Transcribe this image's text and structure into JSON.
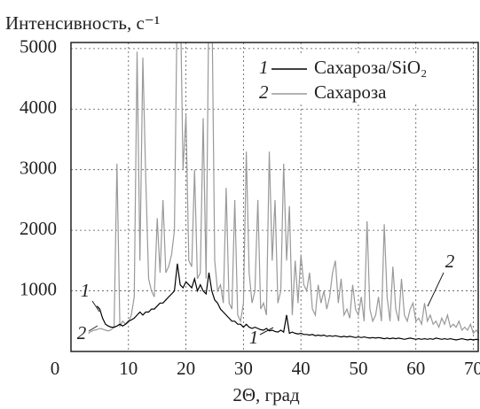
{
  "chart_data": {
    "type": "line",
    "ylabel": "Интенсивность, с⁻¹",
    "xlabel": "2Θ, град",
    "xlim": [
      0,
      71
    ],
    "ylim": [
      0,
      5100
    ],
    "xticks": [
      0,
      10,
      20,
      30,
      40,
      50,
      60,
      70
    ],
    "yticks": [
      1000,
      2000,
      3000,
      4000,
      5000
    ],
    "grid": true,
    "legend": "upper right",
    "annotations": [
      "1",
      "2",
      "1",
      "2"
    ],
    "x": [
      3,
      3.5,
      4,
      4.5,
      5,
      5.5,
      6,
      6.5,
      7,
      7.5,
      8,
      8.5,
      9,
      9.5,
      10,
      10.5,
      11,
      11.5,
      12,
      12.5,
      13,
      13.5,
      14,
      14.5,
      15,
      15.5,
      16,
      16.5,
      17,
      17.5,
      18,
      18.5,
      19,
      19.5,
      20,
      20.5,
      21,
      21.5,
      22,
      22.5,
      23,
      23.5,
      24,
      24.5,
      25,
      25.5,
      26,
      26.5,
      27,
      27.5,
      28,
      28.5,
      29,
      29.5,
      30,
      30.5,
      31,
      31.5,
      32,
      32.5,
      33,
      33.5,
      34,
      34.5,
      35,
      35.5,
      36,
      36.5,
      37,
      37.5,
      38,
      38.5,
      39,
      39.5,
      40,
      40.5,
      41,
      41.5,
      42,
      42.5,
      43,
      43.5,
      44,
      44.5,
      45,
      45.5,
      46,
      46.5,
      47,
      47.5,
      48,
      48.5,
      49,
      49.5,
      50,
      50.5,
      51,
      51.5,
      52,
      52.5,
      53,
      53.5,
      54,
      54.5,
      55,
      55.5,
      56,
      56.5,
      57,
      57.5,
      58,
      58.5,
      59,
      59.5,
      60,
      60.5,
      61,
      61.5,
      62,
      62.5,
      63,
      63.5,
      64,
      64.5,
      65,
      65.5,
      66,
      66.5,
      67,
      67.5,
      68,
      68.5,
      69,
      69.5,
      70,
      70.5,
      71
    ],
    "series": [
      {
        "label": "1",
        "name": "Сахароза/SiO₂",
        "color": "#000000",
        "values": [
          null,
          null,
          null,
          750,
          700,
          550,
          450,
          420,
          400,
          400,
          420,
          450,
          420,
          450,
          500,
          520,
          550,
          600,
          650,
          600,
          650,
          650,
          700,
          700,
          750,
          800,
          800,
          850,
          900,
          950,
          1000,
          1450,
          1100,
          1050,
          1150,
          1100,
          1050,
          1200,
          1000,
          1100,
          1000,
          950,
          1300,
          1000,
          850,
          800,
          700,
          650,
          600,
          550,
          500,
          500,
          450,
          450,
          400,
          450,
          400,
          380,
          400,
          380,
          360,
          350,
          380,
          340,
          350,
          330,
          320,
          350,
          320,
          600,
          300,
          320,
          300,
          290,
          300,
          280,
          280,
          270,
          280,
          260,
          270,
          260,
          270,
          250,
          260,
          250,
          260,
          250,
          240,
          250,
          240,
          250,
          240,
          230,
          240,
          230,
          240,
          230,
          220,
          230,
          220,
          230,
          220,
          210,
          220,
          210,
          220,
          210,
          220,
          210,
          200,
          210,
          220,
          210,
          200,
          210,
          200,
          210,
          200,
          210,
          200,
          220,
          210,
          200,
          210,
          200,
          210,
          200,
          190,
          200,
          210,
          200,
          190,
          200,
          190,
          200,
          190
        ]
      },
      {
        "label": "2",
        "name": "Сахароза",
        "color": "#999999",
        "values": [
          300,
          330,
          350,
          360,
          380,
          370,
          350,
          340,
          360,
          400,
          3100,
          420,
          500,
          450,
          480,
          600,
          900,
          4950,
          1500,
          4850,
          2900,
          1200,
          1000,
          900,
          2200,
          1300,
          2500,
          1300,
          1400,
          1600,
          2000,
          6000,
          6000,
          3000,
          3900,
          1500,
          1400,
          3000,
          1200,
          1300,
          3850,
          1200,
          6000,
          6000,
          1500,
          1000,
          1100,
          800,
          2700,
          800,
          700,
          2500,
          600,
          500,
          800,
          3300,
          1300,
          800,
          1000,
          2500,
          700,
          800,
          600,
          3300,
          1500,
          2500,
          800,
          1000,
          3100,
          1500,
          2400,
          600,
          1500,
          800,
          1600,
          1100,
          1000,
          1300,
          700,
          600,
          1100,
          800,
          1000,
          700,
          900,
          1300,
          1500,
          800,
          1200,
          600,
          700,
          550,
          1100,
          700,
          600,
          900,
          500,
          2150,
          700,
          500,
          600,
          900,
          500,
          2100,
          900,
          500,
          1400,
          700,
          500,
          1200,
          600,
          500,
          700,
          800,
          500,
          550,
          450,
          800,
          500,
          600,
          450,
          500,
          400,
          550,
          450,
          600,
          400,
          450,
          400,
          500,
          350,
          400,
          350,
          450,
          300,
          350,
          300
        ]
      }
    ]
  }
}
